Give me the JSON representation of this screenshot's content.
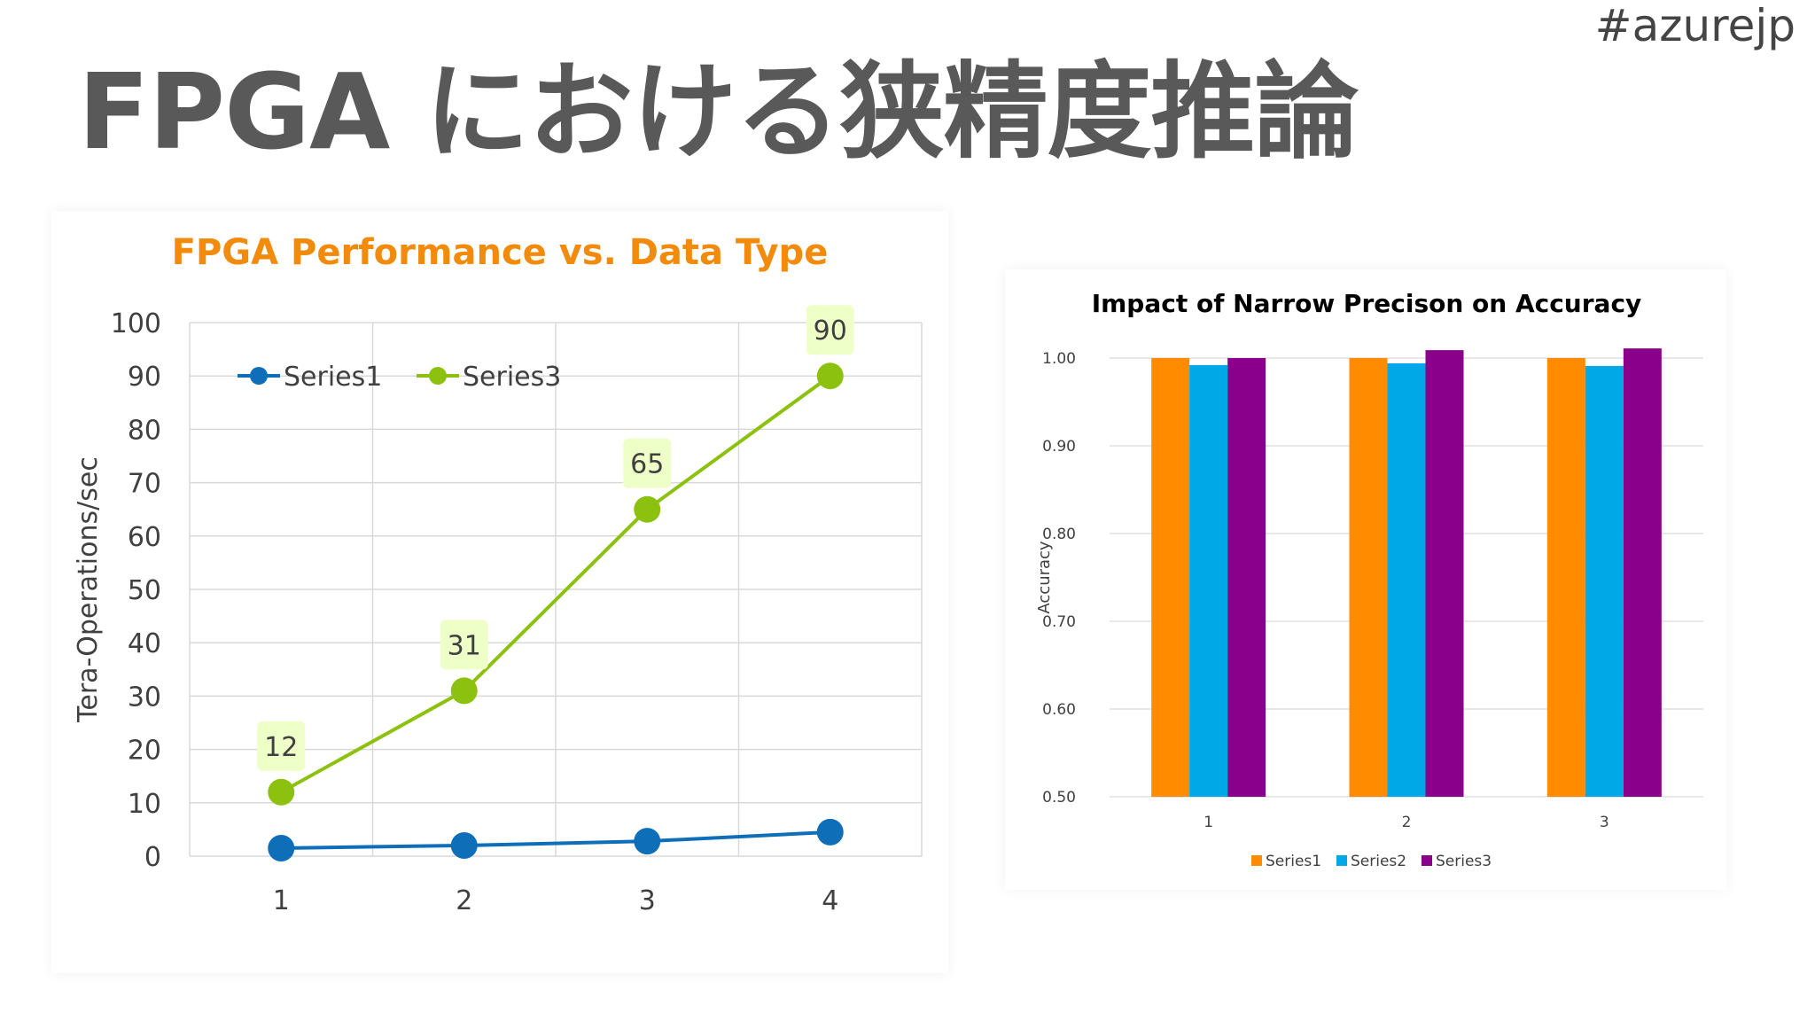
{
  "slide": {
    "title": "FPGA における狭精度推論",
    "hashtag": "#azurejp"
  },
  "chart_data": [
    {
      "type": "line",
      "title": "FPGA Performance vs. Data Type",
      "xlabel": "",
      "ylabel": "Tera-Operations/sec",
      "categories": [
        "1",
        "2",
        "3",
        "4"
      ],
      "ylim": [
        0,
        100
      ],
      "yticks": [
        "0",
        "10",
        "20",
        "30",
        "40",
        "50",
        "60",
        "70",
        "80",
        "90",
        "100"
      ],
      "grid": true,
      "legend": "top-left",
      "series": [
        {
          "name": "Series1",
          "values": [
            1.5,
            2,
            2.8,
            4.5
          ],
          "color": "#0e6eb8",
          "labels": []
        },
        {
          "name": "Series3",
          "values": [
            12,
            31,
            65,
            90
          ],
          "color": "#8cc20f",
          "labels": [
            "12",
            "31",
            "65",
            "90"
          ]
        }
      ],
      "title_color": "#f28a0c"
    },
    {
      "type": "bar",
      "title": "Impact of Narrow Precison on Accuracy",
      "xlabel": "",
      "ylabel": "Accuracy",
      "categories": [
        "1",
        "2",
        "3"
      ],
      "ylim": [
        0.5,
        1.0
      ],
      "yticks": [
        "0.50",
        "0.60",
        "0.70",
        "0.80",
        "0.90",
        "1.00"
      ],
      "grid": true,
      "legend": "bottom",
      "series": [
        {
          "name": "Series1",
          "values": [
            1.0,
            1.0,
            1.0
          ],
          "color": "#ff8c00"
        },
        {
          "name": "Series2",
          "values": [
            0.992,
            0.994,
            0.991
          ],
          "color": "#00a8e8"
        },
        {
          "name": "Series3",
          "values": [
            1.0,
            1.009,
            1.011
          ],
          "color": "#8b008b"
        }
      ]
    }
  ]
}
